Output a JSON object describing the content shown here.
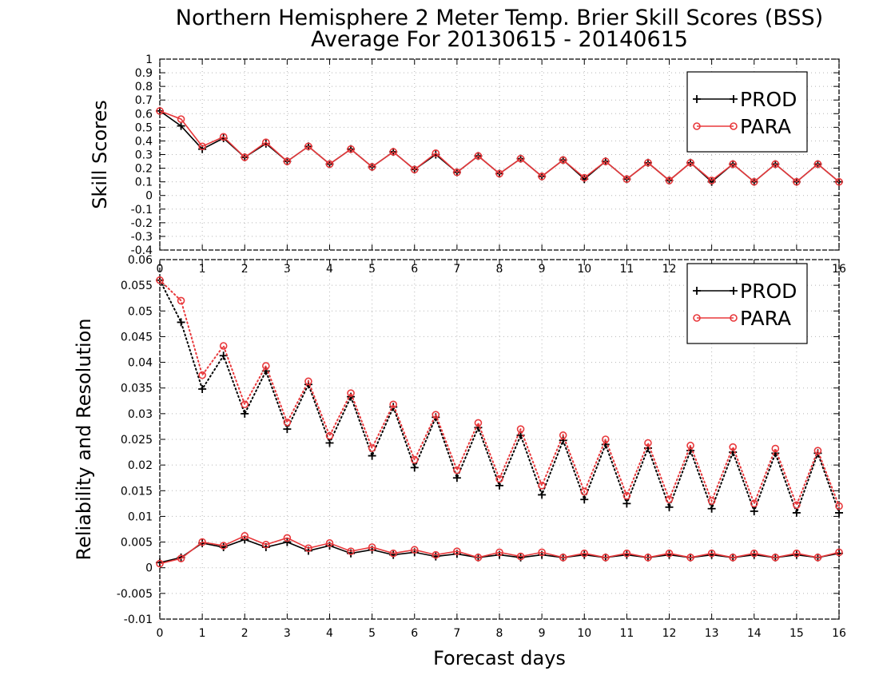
{
  "title": {
    "line1": "Northern Hemisphere 2 Meter Temp. Brier Skill Scores (BSS)",
    "line2": "Average For 20130615 - 20140615"
  },
  "xlabel": "Forecast days",
  "colors": {
    "prod": "#000000",
    "para": "#e8383b",
    "grid": "#b5b5b5"
  },
  "chart_data": [
    {
      "type": "line",
      "title": "",
      "ylabel": "Skill Scores",
      "xlabel": "",
      "xlim": [
        0,
        16
      ],
      "ylim": [
        -0.4,
        1
      ],
      "x_ticks": [
        0,
        1,
        2,
        3,
        4,
        5,
        6,
        7,
        8,
        9,
        10,
        11,
        12,
        13,
        14,
        15,
        16
      ],
      "y_ticks": [
        -0.4,
        -0.3,
        -0.2,
        -0.1,
        0,
        0.1,
        0.2,
        0.3,
        0.4,
        0.5,
        0.6,
        0.7,
        0.8,
        0.9,
        1
      ],
      "y_tick_labels": [
        "-0.4",
        "-0.3",
        "-0.2",
        "-0.1",
        "0",
        "0.1",
        "0.2",
        "0.3",
        "0.4",
        "0.5",
        "0.6",
        "0.7",
        "0.8",
        "0.9",
        "1"
      ],
      "grid": true,
      "legend_position": "top-right",
      "legend": [
        "PROD",
        "PARA"
      ],
      "x": [
        0,
        0.5,
        1,
        1.5,
        2,
        2.5,
        3,
        3.5,
        4,
        4.5,
        5,
        5.5,
        6,
        6.5,
        7,
        7.5,
        8,
        8.5,
        9,
        9.5,
        10,
        10.5,
        11,
        11.5,
        12,
        12.5,
        13,
        13.5,
        14,
        14.5,
        15,
        15.5,
        16
      ],
      "series": [
        {
          "name": "PROD",
          "style": "solid",
          "marker": "plus",
          "color": "#000000",
          "values": [
            0.62,
            0.51,
            0.34,
            0.42,
            0.28,
            0.38,
            0.25,
            0.36,
            0.23,
            0.34,
            0.21,
            0.32,
            0.19,
            0.3,
            0.17,
            0.29,
            0.16,
            0.27,
            0.14,
            0.26,
            0.12,
            0.25,
            0.12,
            0.24,
            0.11,
            0.24,
            0.1,
            0.23,
            0.1,
            0.23,
            0.1,
            0.23,
            0.1
          ]
        },
        {
          "name": "PARA",
          "style": "solid",
          "marker": "circle",
          "color": "#e8383b",
          "values": [
            0.62,
            0.56,
            0.36,
            0.43,
            0.28,
            0.39,
            0.25,
            0.36,
            0.23,
            0.34,
            0.21,
            0.32,
            0.19,
            0.31,
            0.17,
            0.29,
            0.16,
            0.27,
            0.14,
            0.26,
            0.13,
            0.25,
            0.12,
            0.24,
            0.11,
            0.24,
            0.11,
            0.23,
            0.1,
            0.23,
            0.1,
            0.23,
            0.1
          ]
        }
      ]
    },
    {
      "type": "line",
      "title": "",
      "ylabel": "Reliability and Resolution",
      "xlabel": "Forecast days",
      "xlim": [
        0,
        16
      ],
      "ylim": [
        -0.01,
        0.06
      ],
      "x_ticks": [
        0,
        1,
        2,
        3,
        4,
        5,
        6,
        7,
        8,
        9,
        10,
        11,
        12,
        13,
        14,
        15,
        16
      ],
      "y_ticks": [
        -0.01,
        -0.005,
        0,
        0.005,
        0.01,
        0.015,
        0.02,
        0.025,
        0.03,
        0.035,
        0.04,
        0.045,
        0.05,
        0.055,
        0.06
      ],
      "y_tick_labels": [
        "-0.01",
        "-0.005",
        "0",
        "0.005",
        "0.01",
        "0.015",
        "0.02",
        "0.025",
        "0.03",
        "0.035",
        "0.04",
        "0.045",
        "0.05",
        "0.055",
        "0.06"
      ],
      "grid": true,
      "legend_position": "top-right",
      "legend": [
        "PROD",
        "PARA"
      ],
      "x": [
        0,
        0.5,
        1,
        1.5,
        2,
        2.5,
        3,
        3.5,
        4,
        4.5,
        5,
        5.5,
        6,
        6.5,
        7,
        7.5,
        8,
        8.5,
        9,
        9.5,
        10,
        10.5,
        11,
        11.5,
        12,
        12.5,
        13,
        13.5,
        14,
        14.5,
        15,
        15.5,
        16
      ],
      "series": [
        {
          "name": "PROD",
          "style": "dotted",
          "marker": "plus",
          "color": "#000000",
          "values": [
            0.056,
            0.0478,
            0.0348,
            0.0413,
            0.03,
            0.0383,
            0.027,
            0.0357,
            0.0243,
            0.0333,
            0.0218,
            0.0313,
            0.0195,
            0.0293,
            0.0175,
            0.0273,
            0.016,
            0.0258,
            0.0142,
            0.0248,
            0.0133,
            0.024,
            0.0125,
            0.0233,
            0.0118,
            0.0228,
            0.0115,
            0.0225,
            0.011,
            0.0223,
            0.0107,
            0.0223,
            0.0107
          ]
        },
        {
          "name": "PARA",
          "style": "dotted",
          "marker": "circle",
          "color": "#e8383b",
          "values": [
            0.056,
            0.052,
            0.0375,
            0.0432,
            0.0318,
            0.0393,
            0.0283,
            0.0363,
            0.0257,
            0.034,
            0.0233,
            0.0318,
            0.021,
            0.0298,
            0.019,
            0.0282,
            0.0173,
            0.027,
            0.016,
            0.0258,
            0.0148,
            0.025,
            0.014,
            0.0243,
            0.0133,
            0.0238,
            0.013,
            0.0235,
            0.0125,
            0.0232,
            0.0122,
            0.0228,
            0.012
          ]
        },
        {
          "name": "PROD",
          "style": "solid",
          "marker": "plus",
          "color": "#000000",
          "values": [
            0.001,
            0.002,
            0.0048,
            0.004,
            0.0055,
            0.004,
            0.005,
            0.0033,
            0.0043,
            0.0028,
            0.0035,
            0.0025,
            0.003,
            0.0022,
            0.0027,
            0.002,
            0.0025,
            0.002,
            0.0025,
            0.002,
            0.0025,
            0.002,
            0.0025,
            0.002,
            0.0025,
            0.002,
            0.0025,
            0.002,
            0.0025,
            0.002,
            0.0025,
            0.002,
            0.0028
          ]
        },
        {
          "name": "PARA",
          "style": "solid",
          "marker": "circle",
          "color": "#e8383b",
          "values": [
            0.0008,
            0.0018,
            0.005,
            0.0043,
            0.0062,
            0.0045,
            0.0058,
            0.0038,
            0.0048,
            0.0032,
            0.004,
            0.0028,
            0.0035,
            0.0025,
            0.0032,
            0.002,
            0.003,
            0.0022,
            0.003,
            0.002,
            0.0028,
            0.002,
            0.0028,
            0.002,
            0.0028,
            0.002,
            0.0028,
            0.002,
            0.0028,
            0.002,
            0.0028,
            0.002,
            0.003
          ]
        }
      ]
    }
  ]
}
